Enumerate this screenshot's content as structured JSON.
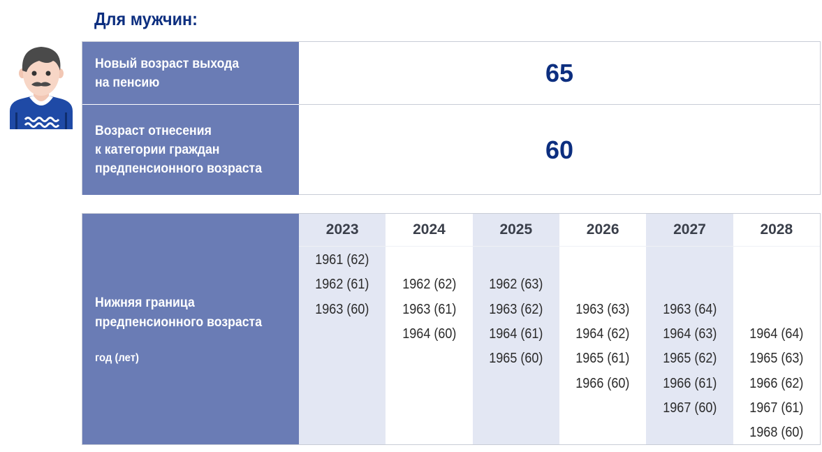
{
  "title": "Для мужчин:",
  "icon": "man-avatar-icon",
  "colors": {
    "label_bg": "#6a7cb5",
    "shade_col": "#e3e7f3",
    "accent": "#0c2e7f"
  },
  "summary": [
    {
      "label": "Новый возраст выхода\nна пенсию",
      "value": "65"
    },
    {
      "label": "Возраст отнесения\nк категории граждан\nпредпенсионного возраста",
      "value": "60"
    }
  ],
  "table": {
    "label": "Нижняя граница\nпредпенсионного возраста",
    "sublabel": "год (лет)",
    "columns": [
      {
        "year": "2023",
        "start_row": 0,
        "entries": [
          "1961 (62)",
          "1962 (61)",
          "1963 (60)"
        ]
      },
      {
        "year": "2024",
        "start_row": 1,
        "entries": [
          "1962 (62)",
          "1963 (61)",
          "1964 (60)"
        ]
      },
      {
        "year": "2025",
        "start_row": 1,
        "entries": [
          "1962 (63)",
          "1963 (62)",
          "1964 (61)",
          "1965 (60)"
        ]
      },
      {
        "year": "2026",
        "start_row": 2,
        "entries": [
          "1963 (63)",
          "1964 (62)",
          "1965 (61)",
          "1966 (60)"
        ]
      },
      {
        "year": "2027",
        "start_row": 2,
        "entries": [
          "1963 (64)",
          "1964 (63)",
          "1965 (62)",
          "1966 (61)",
          "1967 (60)"
        ]
      },
      {
        "year": "2028",
        "start_row": 3,
        "entries": [
          "1964 (64)",
          "1965 (63)",
          "1966 (62)",
          "1967 (61)",
          "1968 (60)"
        ]
      }
    ]
  }
}
